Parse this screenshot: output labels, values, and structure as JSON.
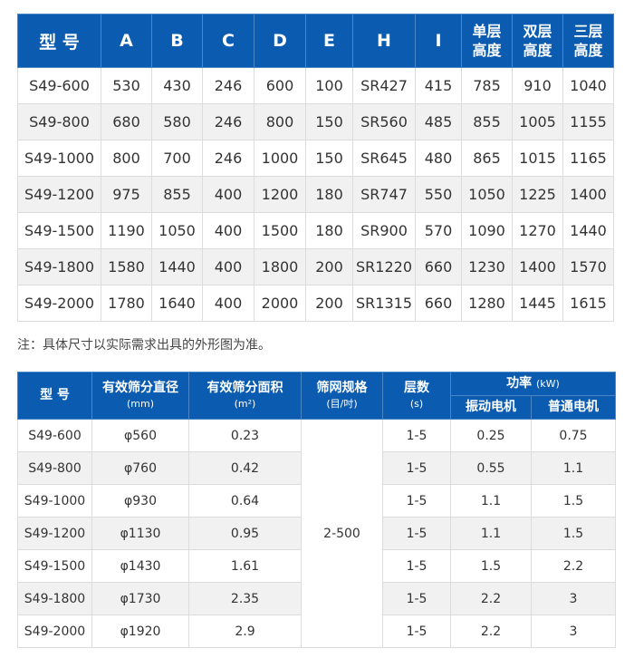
{
  "table1": {
    "headers": [
      "型 号",
      "A",
      "B",
      "C",
      "D",
      "E",
      "H",
      "I",
      "单层\n高度",
      "双层\n高度",
      "三层\n高度"
    ],
    "rows": [
      [
        "S49-600",
        "530",
        "430",
        "246",
        "600",
        "100",
        "SR427",
        "415",
        "785",
        "910",
        "1040"
      ],
      [
        "S49-800",
        "680",
        "580",
        "246",
        "800",
        "150",
        "SR560",
        "485",
        "855",
        "1005",
        "1155"
      ],
      [
        "S49-1000",
        "800",
        "700",
        "246",
        "1000",
        "150",
        "SR645",
        "480",
        "865",
        "1015",
        "1165"
      ],
      [
        "S49-1200",
        "975",
        "855",
        "400",
        "1200",
        "180",
        "SR747",
        "550",
        "1050",
        "1225",
        "1400"
      ],
      [
        "S49-1500",
        "1190",
        "1050",
        "400",
        "1500",
        "180",
        "SR900",
        "570",
        "1090",
        "1270",
        "1440"
      ],
      [
        "S49-1800",
        "1580",
        "1440",
        "400",
        "1800",
        "200",
        "SR1220",
        "660",
        "1230",
        "1400",
        "1570"
      ],
      [
        "S49-2000",
        "1780",
        "1640",
        "400",
        "2000",
        "200",
        "SR1315",
        "660",
        "1280",
        "1445",
        "1615"
      ]
    ]
  },
  "note": "注：具体尺寸以实际需求出具的外形图为准。",
  "table2": {
    "h_model": "型 号",
    "h_diameter": "有效筛分直径",
    "h_diameter_unit": "(mm)",
    "h_area": "有效筛分面积",
    "h_area_unit": "(m²)",
    "h_mesh": "筛网规格",
    "h_mesh_unit": "(目/吋)",
    "h_layers": "层数",
    "h_layers_unit": "(s)",
    "h_power": "功率",
    "h_power_unit": "(kW)",
    "h_vib": "振动电机",
    "h_normal": "普通电机",
    "mesh_value": "2-500",
    "rows": [
      [
        "S49-600",
        "φ560",
        "0.23",
        "1-5",
        "0.25",
        "0.75"
      ],
      [
        "S49-800",
        "φ760",
        "0.42",
        "1-5",
        "0.55",
        "1.1"
      ],
      [
        "S49-1000",
        "φ930",
        "0.64",
        "1-5",
        "1.1",
        "1.5"
      ],
      [
        "S49-1200",
        "φ1130",
        "0.95",
        "1-5",
        "1.1",
        "1.5"
      ],
      [
        "S49-1500",
        "φ1430",
        "1.61",
        "1-5",
        "1.5",
        "2.2"
      ],
      [
        "S49-1800",
        "φ1730",
        "2.35",
        "1-5",
        "2.2",
        "3"
      ],
      [
        "S49-2000",
        "φ1920",
        "2.9",
        "1-5",
        "2.2",
        "3"
      ]
    ]
  },
  "colors": {
    "header": "#0b5cb0",
    "stripe": "#f1f1f1"
  }
}
